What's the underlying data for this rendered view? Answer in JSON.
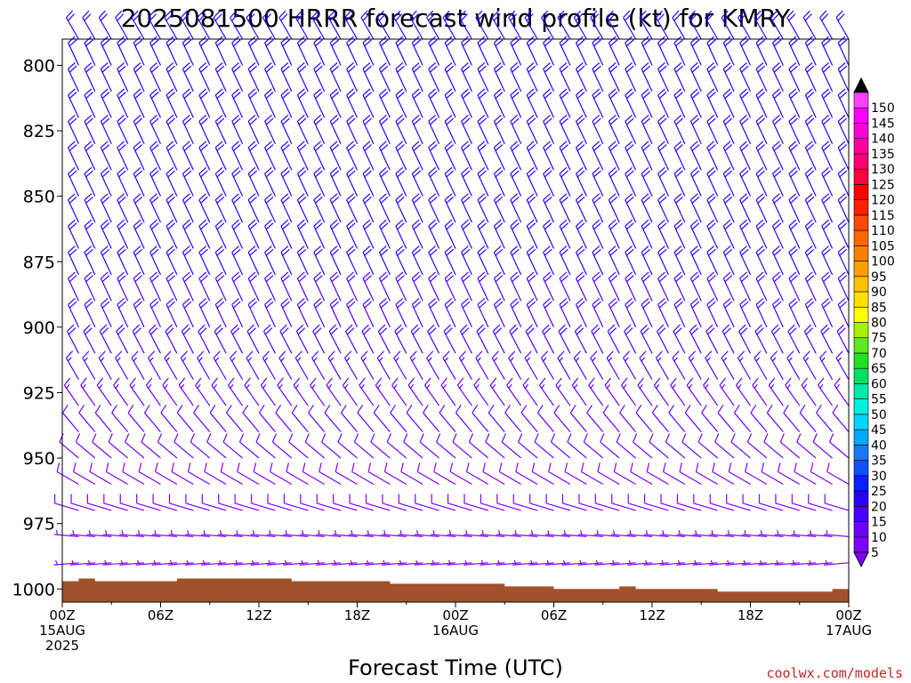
{
  "chart_data": {
    "type": "wind-barb-profile",
    "title": "2025081500 HRRR forecast wind profile (kt) for KMRY",
    "xlabel": "Forecast Time (UTC)",
    "ylabel": "",
    "credit": "coolwx.com/models",
    "x_range_hours": [
      0,
      48
    ],
    "y_range_mb": [
      790,
      1005
    ],
    "x_ticks": [
      {
        "h": 0,
        "l1": "00Z",
        "l2": "15AUG",
        "l3": "2025"
      },
      {
        "h": 6,
        "l1": "06Z",
        "l2": "",
        "l3": ""
      },
      {
        "h": 12,
        "l1": "12Z",
        "l2": "",
        "l3": ""
      },
      {
        "h": 18,
        "l1": "18Z",
        "l2": "",
        "l3": ""
      },
      {
        "h": 24,
        "l1": "00Z",
        "l2": "16AUG",
        "l3": ""
      },
      {
        "h": 30,
        "l1": "06Z",
        "l2": "",
        "l3": ""
      },
      {
        "h": 36,
        "l1": "12Z",
        "l2": "",
        "l3": ""
      },
      {
        "h": 42,
        "l1": "18Z",
        "l2": "",
        "l3": ""
      },
      {
        "h": 48,
        "l1": "00Z",
        "l2": "17AUG",
        "l3": ""
      }
    ],
    "y_ticks": [
      {
        "p": 800,
        "label": "800"
      },
      {
        "p": 825,
        "label": "825"
      },
      {
        "p": 850,
        "label": "850"
      },
      {
        "p": 875,
        "label": "875"
      },
      {
        "p": 900,
        "label": "900"
      },
      {
        "p": 925,
        "label": "925"
      },
      {
        "p": 950,
        "label": "950"
      },
      {
        "p": 975,
        "label": "975"
      },
      {
        "p": 1000,
        "label": "1000"
      }
    ],
    "colorbar_labels": [
      "5",
      "10",
      "15",
      "20",
      "25",
      "30",
      "35",
      "40",
      "45",
      "50",
      "55",
      "60",
      "65",
      "70",
      "75",
      "80",
      "85",
      "90",
      "95",
      "100",
      "105",
      "110",
      "115",
      "120",
      "125",
      "130",
      "135",
      "140",
      "145",
      "150"
    ],
    "colorbar_colors": [
      "#8000ff",
      "#6a00ff",
      "#4a00ff",
      "#2a00ff",
      "#0a20ff",
      "#1050ff",
      "#1a78ff",
      "#00a8ff",
      "#00d4ff",
      "#00f0e0",
      "#00e8a8",
      "#00e060",
      "#20e020",
      "#60e820",
      "#a8f000",
      "#ffff00",
      "#ffe000",
      "#ffc000",
      "#ffa000",
      "#ff8000",
      "#ff6800",
      "#ff4800",
      "#ff2000",
      "#ff0000",
      "#ff0040",
      "#ff0070",
      "#ff00a0",
      "#ff00d0",
      "#ff00ff",
      "#ff40ff"
    ],
    "surface_pressure": [
      {
        "h": 0,
        "p": 997
      },
      {
        "h": 1,
        "p": 996
      },
      {
        "h": 2,
        "p": 997
      },
      {
        "h": 6,
        "p": 997
      },
      {
        "h": 7,
        "p": 996
      },
      {
        "h": 13,
        "p": 996
      },
      {
        "h": 14,
        "p": 997
      },
      {
        "h": 19,
        "p": 997
      },
      {
        "h": 20,
        "p": 998
      },
      {
        "h": 26,
        "p": 998
      },
      {
        "h": 27,
        "p": 999
      },
      {
        "h": 29,
        "p": 999
      },
      {
        "h": 30,
        "p": 1000
      },
      {
        "h": 33,
        "p": 1000
      },
      {
        "h": 34,
        "p": 999
      },
      {
        "h": 35,
        "p": 1000
      },
      {
        "h": 39,
        "p": 1000
      },
      {
        "h": 40,
        "p": 1001
      },
      {
        "h": 46,
        "p": 1001
      },
      {
        "h": 47,
        "p": 1000
      },
      {
        "h": 48,
        "p": 1000
      }
    ],
    "surface_color": "#a0522d",
    "barb_levels_mb": [
      790,
      800,
      810,
      820,
      830,
      840,
      850,
      860,
      870,
      880,
      890,
      900,
      910,
      920,
      930,
      940,
      950,
      960,
      970,
      980,
      990
    ],
    "wind_profile_kt": [
      {
        "p": 790,
        "dir": 330,
        "spd": 22
      },
      {
        "p": 800,
        "dir": 335,
        "spd": 22
      },
      {
        "p": 820,
        "dir": 335,
        "spd": 21
      },
      {
        "p": 850,
        "dir": 335,
        "spd": 21
      },
      {
        "p": 880,
        "dir": 335,
        "spd": 20
      },
      {
        "p": 900,
        "dir": 335,
        "spd": 19
      },
      {
        "p": 920,
        "dir": 330,
        "spd": 16
      },
      {
        "p": 940,
        "dir": 320,
        "spd": 12
      },
      {
        "p": 960,
        "dir": 300,
        "spd": 9
      },
      {
        "p": 975,
        "dir": 280,
        "spd": 7
      },
      {
        "p": 990,
        "dir": 265,
        "spd": 5
      }
    ]
  }
}
